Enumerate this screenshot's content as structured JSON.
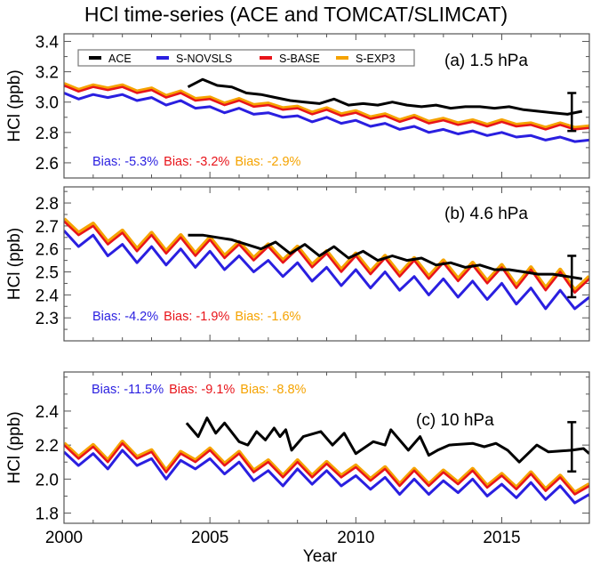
{
  "chart_data": {
    "type": "line",
    "title": "HCl time-series (ACE and TOMCAT/SLIMCAT)",
    "xlabel": "Year",
    "ylabel": "HCl (ppb)",
    "xlim": [
      2000,
      2018
    ],
    "xticks": [
      2000,
      2005,
      2010,
      2015
    ],
    "colors": {
      "ACE": "#000000",
      "S-NOVSLS": "#2a1fe0",
      "S-BASE": "#e8141a",
      "S-EXP3": "#f5a300"
    },
    "legend": {
      "placement": "top-left of panel a",
      "entries": [
        "ACE",
        "S-NOVSLS",
        "S-BASE",
        "S-EXP3"
      ]
    },
    "model_x": [
      2000,
      2000.5,
      2001,
      2001.5,
      2002,
      2002.5,
      2003,
      2003.5,
      2004,
      2004.5,
      2005,
      2005.5,
      2006,
      2006.5,
      2007,
      2007.5,
      2008,
      2008.5,
      2009,
      2009.5,
      2010,
      2010.5,
      2011,
      2011.5,
      2012,
      2012.5,
      2013,
      2013.5,
      2014,
      2014.5,
      2015,
      2015.5,
      2016,
      2016.5,
      2017,
      2017.5,
      2018
    ],
    "ace_x": [
      2004.25,
      2004.75,
      2005.25,
      2005.75,
      2006.25,
      2006.75,
      2007.25,
      2007.75,
      2008.25,
      2008.75,
      2009.25,
      2009.75,
      2010.25,
      2010.75,
      2011.25,
      2011.75,
      2012.25,
      2012.75,
      2013.25,
      2013.75,
      2014.25,
      2014.75,
      2015.25,
      2015.75,
      2016.25,
      2016.75,
      2017.25,
      2017.75
    ],
    "panels": [
      {
        "label": "(a) 1.5 hPa",
        "ylim": [
          2.5,
          3.45
        ],
        "yticks": [
          2.6,
          2.8,
          3.0,
          3.2,
          3.4
        ],
        "bias": [
          {
            "text": "Bias: -5.3%",
            "series": "S-NOVSLS"
          },
          {
            "text": "Bias: -3.2%",
            "series": "S-BASE"
          },
          {
            "text": "Bias: -2.9%",
            "series": "S-EXP3"
          }
        ],
        "series": {
          "S-NOVSLS": [
            3.06,
            3.02,
            3.05,
            3.03,
            3.05,
            3.01,
            3.03,
            2.98,
            3.01,
            2.96,
            2.97,
            2.93,
            2.96,
            2.92,
            2.93,
            2.9,
            2.91,
            2.87,
            2.9,
            2.86,
            2.88,
            2.84,
            2.86,
            2.82,
            2.84,
            2.8,
            2.82,
            2.79,
            2.81,
            2.78,
            2.8,
            2.77,
            2.78,
            2.75,
            2.77,
            2.74,
            2.75
          ],
          "S-BASE": [
            3.11,
            3.07,
            3.1,
            3.08,
            3.1,
            3.06,
            3.08,
            3.03,
            3.06,
            3.01,
            3.02,
            2.98,
            3.01,
            2.97,
            2.98,
            2.95,
            2.96,
            2.92,
            2.95,
            2.91,
            2.93,
            2.89,
            2.91,
            2.87,
            2.9,
            2.86,
            2.88,
            2.85,
            2.87,
            2.84,
            2.87,
            2.84,
            2.85,
            2.82,
            2.85,
            2.82,
            2.83
          ],
          "S-EXP3": [
            3.12,
            3.08,
            3.11,
            3.09,
            3.11,
            3.07,
            3.09,
            3.04,
            3.07,
            3.02,
            3.03,
            2.99,
            3.02,
            2.98,
            2.99,
            2.96,
            2.97,
            2.93,
            2.96,
            2.92,
            2.94,
            2.9,
            2.92,
            2.88,
            2.91,
            2.87,
            2.89,
            2.86,
            2.88,
            2.85,
            2.88,
            2.85,
            2.86,
            2.83,
            2.86,
            2.83,
            2.84
          ],
          "ACE": [
            3.1,
            3.15,
            3.11,
            3.1,
            3.06,
            3.05,
            3.03,
            3.01,
            3.0,
            2.99,
            3.02,
            2.98,
            2.99,
            2.98,
            3.0,
            2.98,
            2.97,
            2.98,
            2.96,
            2.97,
            2.97,
            2.96,
            2.97,
            2.95,
            2.94,
            2.93,
            2.92,
            2.94
          ]
        },
        "error_bar": {
          "x": 2017.4,
          "low": 2.81,
          "high": 3.06
        }
      },
      {
        "label": "(b) 4.6 hPa",
        "ylim": [
          2.2,
          2.87
        ],
        "yticks": [
          2.3,
          2.4,
          2.5,
          2.6,
          2.7,
          2.8
        ],
        "bias": [
          {
            "text": "Bias: -4.2%",
            "series": "S-NOVSLS"
          },
          {
            "text": "Bias: -1.9%",
            "series": "S-BASE"
          },
          {
            "text": "Bias: -1.6%",
            "series": "S-EXP3"
          }
        ],
        "series": {
          "S-NOVSLS": [
            2.68,
            2.61,
            2.66,
            2.57,
            2.62,
            2.54,
            2.61,
            2.53,
            2.6,
            2.52,
            2.59,
            2.51,
            2.57,
            2.5,
            2.55,
            2.48,
            2.54,
            2.46,
            2.52,
            2.44,
            2.51,
            2.43,
            2.5,
            2.42,
            2.48,
            2.4,
            2.47,
            2.39,
            2.46,
            2.38,
            2.45,
            2.36,
            2.43,
            2.34,
            2.42,
            2.34,
            2.39
          ],
          "S-BASE": [
            2.72,
            2.66,
            2.7,
            2.62,
            2.67,
            2.59,
            2.66,
            2.58,
            2.65,
            2.57,
            2.64,
            2.56,
            2.62,
            2.55,
            2.61,
            2.54,
            2.6,
            2.52,
            2.58,
            2.5,
            2.57,
            2.49,
            2.56,
            2.48,
            2.55,
            2.47,
            2.54,
            2.46,
            2.53,
            2.45,
            2.52,
            2.43,
            2.51,
            2.42,
            2.5,
            2.41,
            2.47
          ],
          "S-EXP3": [
            2.73,
            2.67,
            2.71,
            2.63,
            2.68,
            2.6,
            2.67,
            2.59,
            2.66,
            2.58,
            2.65,
            2.57,
            2.63,
            2.56,
            2.62,
            2.55,
            2.61,
            2.53,
            2.59,
            2.51,
            2.58,
            2.5,
            2.57,
            2.49,
            2.56,
            2.48,
            2.55,
            2.47,
            2.54,
            2.46,
            2.53,
            2.44,
            2.52,
            2.43,
            2.51,
            2.42,
            2.48
          ],
          "ACE": [
            2.66,
            2.66,
            2.65,
            2.64,
            2.62,
            2.6,
            2.63,
            2.58,
            2.62,
            2.57,
            2.61,
            2.56,
            2.59,
            2.55,
            2.57,
            2.55,
            2.56,
            2.53,
            2.54,
            2.52,
            2.53,
            2.51,
            2.51,
            2.5,
            2.49,
            2.49,
            2.48,
            2.47
          ]
        },
        "error_bar": {
          "x": 2017.4,
          "low": 2.39,
          "high": 2.57
        }
      },
      {
        "label": "(c) 10 hPa",
        "ylim": [
          1.74,
          2.63
        ],
        "yticks": [
          1.8,
          2.0,
          2.2,
          2.4
        ],
        "bias": [
          {
            "text": "Bias: -11.5%",
            "series": "S-NOVSLS"
          },
          {
            "text": "Bias: -9.1%",
            "series": "S-BASE"
          },
          {
            "text": "Bias: -8.8%",
            "series": "S-EXP3"
          }
        ],
        "series": {
          "S-NOVSLS": [
            2.16,
            2.08,
            2.15,
            2.06,
            2.17,
            2.08,
            2.12,
            2.0,
            2.11,
            2.06,
            2.12,
            2.03,
            2.1,
            1.99,
            2.05,
            1.96,
            2.06,
            1.97,
            2.05,
            1.96,
            2.02,
            1.94,
            2.01,
            1.91,
            2.0,
            1.91,
            1.99,
            1.92,
            2.0,
            1.9,
            1.97,
            1.89,
            1.98,
            1.88,
            1.96,
            1.86,
            1.91
          ],
          "S-BASE": [
            2.2,
            2.12,
            2.19,
            2.1,
            2.21,
            2.12,
            2.16,
            2.04,
            2.15,
            2.1,
            2.17,
            2.08,
            2.15,
            2.04,
            2.1,
            2.01,
            2.1,
            2.01,
            2.09,
            2.01,
            2.07,
            1.99,
            2.06,
            1.96,
            2.05,
            1.96,
            2.04,
            1.97,
            2.05,
            1.95,
            2.02,
            1.94,
            2.03,
            1.93,
            2.01,
            1.91,
            1.96
          ],
          "S-EXP3": [
            2.21,
            2.13,
            2.2,
            2.11,
            2.22,
            2.13,
            2.17,
            2.05,
            2.16,
            2.11,
            2.18,
            2.09,
            2.16,
            2.05,
            2.11,
            2.02,
            2.11,
            2.02,
            2.1,
            2.02,
            2.08,
            2.0,
            2.07,
            1.97,
            2.06,
            1.97,
            2.05,
            1.98,
            2.06,
            1.96,
            2.03,
            1.95,
            2.04,
            1.94,
            2.02,
            1.92,
            1.97
          ],
          "ACE": [
            2.33,
            2.25,
            2.36,
            2.27,
            2.33,
            2.22,
            2.2,
            2.28,
            2.23,
            2.3,
            2.25,
            2.29,
            2.17,
            2.25,
            2.28,
            2.2,
            2.27,
            2.15,
            2.22,
            2.2,
            2.29,
            2.17,
            2.25,
            2.14,
            2.17,
            2.2,
            2.21,
            2.19,
            2.21,
            2.17,
            2.1,
            2.2,
            2.16,
            2.17,
            2.18,
            2.15
          ]
        },
        "ace_x": [
          2004.2,
          2004.6,
          2004.9,
          2005.2,
          2005.5,
          2006.0,
          2006.3,
          2006.6,
          2006.9,
          2007.2,
          2007.4,
          2007.6,
          2007.8,
          2008.2,
          2008.8,
          2009.2,
          2009.6,
          2010.0,
          2010.6,
          2011.0,
          2011.2,
          2011.8,
          2012.2,
          2012.5,
          2012.8,
          2013.2,
          2014.0,
          2014.4,
          2014.8,
          2015.2,
          2015.6,
          2016.2,
          2016.6,
          2017.4,
          2017.8,
          2018.0
        ],
        "error_bar": {
          "x": 2017.4,
          "low": 2.045,
          "high": 2.335
        }
      }
    ]
  }
}
